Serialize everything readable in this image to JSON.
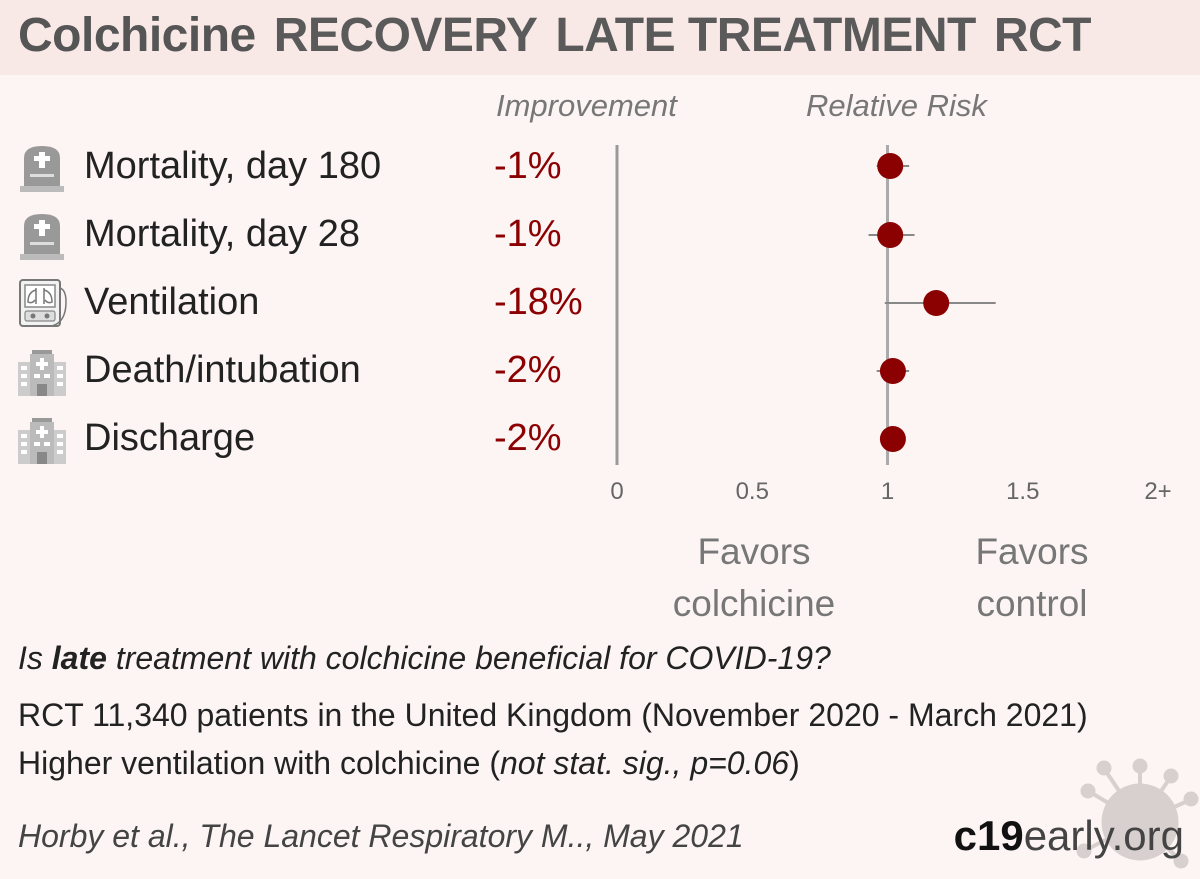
{
  "header": {
    "drug": "Colchicine",
    "trial": "RECOVERY",
    "stage": "LATE TREATMENT",
    "design": "RCT"
  },
  "columns": {
    "improvement": "Improvement",
    "relative_risk": "Relative Risk"
  },
  "chart_data": {
    "type": "forest",
    "outcomes": [
      {
        "label": "Mortality, day 180",
        "improvement": "-1%",
        "icon": "tombstone-icon",
        "rr": 1.01,
        "ci": [
          0.96,
          1.08
        ]
      },
      {
        "label": "Mortality, day 28",
        "improvement": "-1%",
        "icon": "tombstone-icon",
        "rr": 1.01,
        "ci": [
          0.93,
          1.1
        ]
      },
      {
        "label": "Ventilation",
        "improvement": "-18%",
        "icon": "ventilator-icon",
        "rr": 1.18,
        "ci": [
          0.99,
          1.4
        ]
      },
      {
        "label": "Death/intubation",
        "improvement": "-2%",
        "icon": "hospital-icon",
        "rr": 1.02,
        "ci": [
          0.96,
          1.08
        ]
      },
      {
        "label": "Discharge",
        "improvement": "-2%",
        "icon": "hospital-icon",
        "rr": 1.02,
        "ci": [
          0.99,
          1.04
        ]
      }
    ],
    "x_ticks": [
      {
        "value": 0,
        "label": "0"
      },
      {
        "value": 0.5,
        "label": "0.5"
      },
      {
        "value": 1,
        "label": "1"
      },
      {
        "value": 1.5,
        "label": "1.5"
      },
      {
        "value": 2,
        "label": "2+"
      }
    ],
    "xlim": [
      0,
      2
    ],
    "reference_line": 1,
    "favors_left": "Favors colchicine",
    "favors_right": "Favors control",
    "point_color": "#8b0000"
  },
  "favors": {
    "left_line1": "Favors",
    "left_line2": "colchicine",
    "right_line1": "Favors",
    "right_line2": "control"
  },
  "summary": {
    "question_pre": "Is ",
    "question_bold": "late",
    "question_post": " treatment with colchicine beneficial for COVID-19?",
    "line1": "RCT 11,340 patients in the United Kingdom (November 2020 - March 2021)",
    "line2_pre": "Higher ventilation with colchicine (",
    "line2_italic": "not stat. sig., p=0.06",
    "line2_post": ")"
  },
  "footer": {
    "citation": "Horby et al., The Lancet Respiratory M.., May 2021",
    "brand_bold": "c19",
    "brand_rest": "early.org"
  },
  "colors": {
    "accent": "#8b0000",
    "title_bg": "#f8e9e7",
    "background": "#fcf5f4"
  }
}
